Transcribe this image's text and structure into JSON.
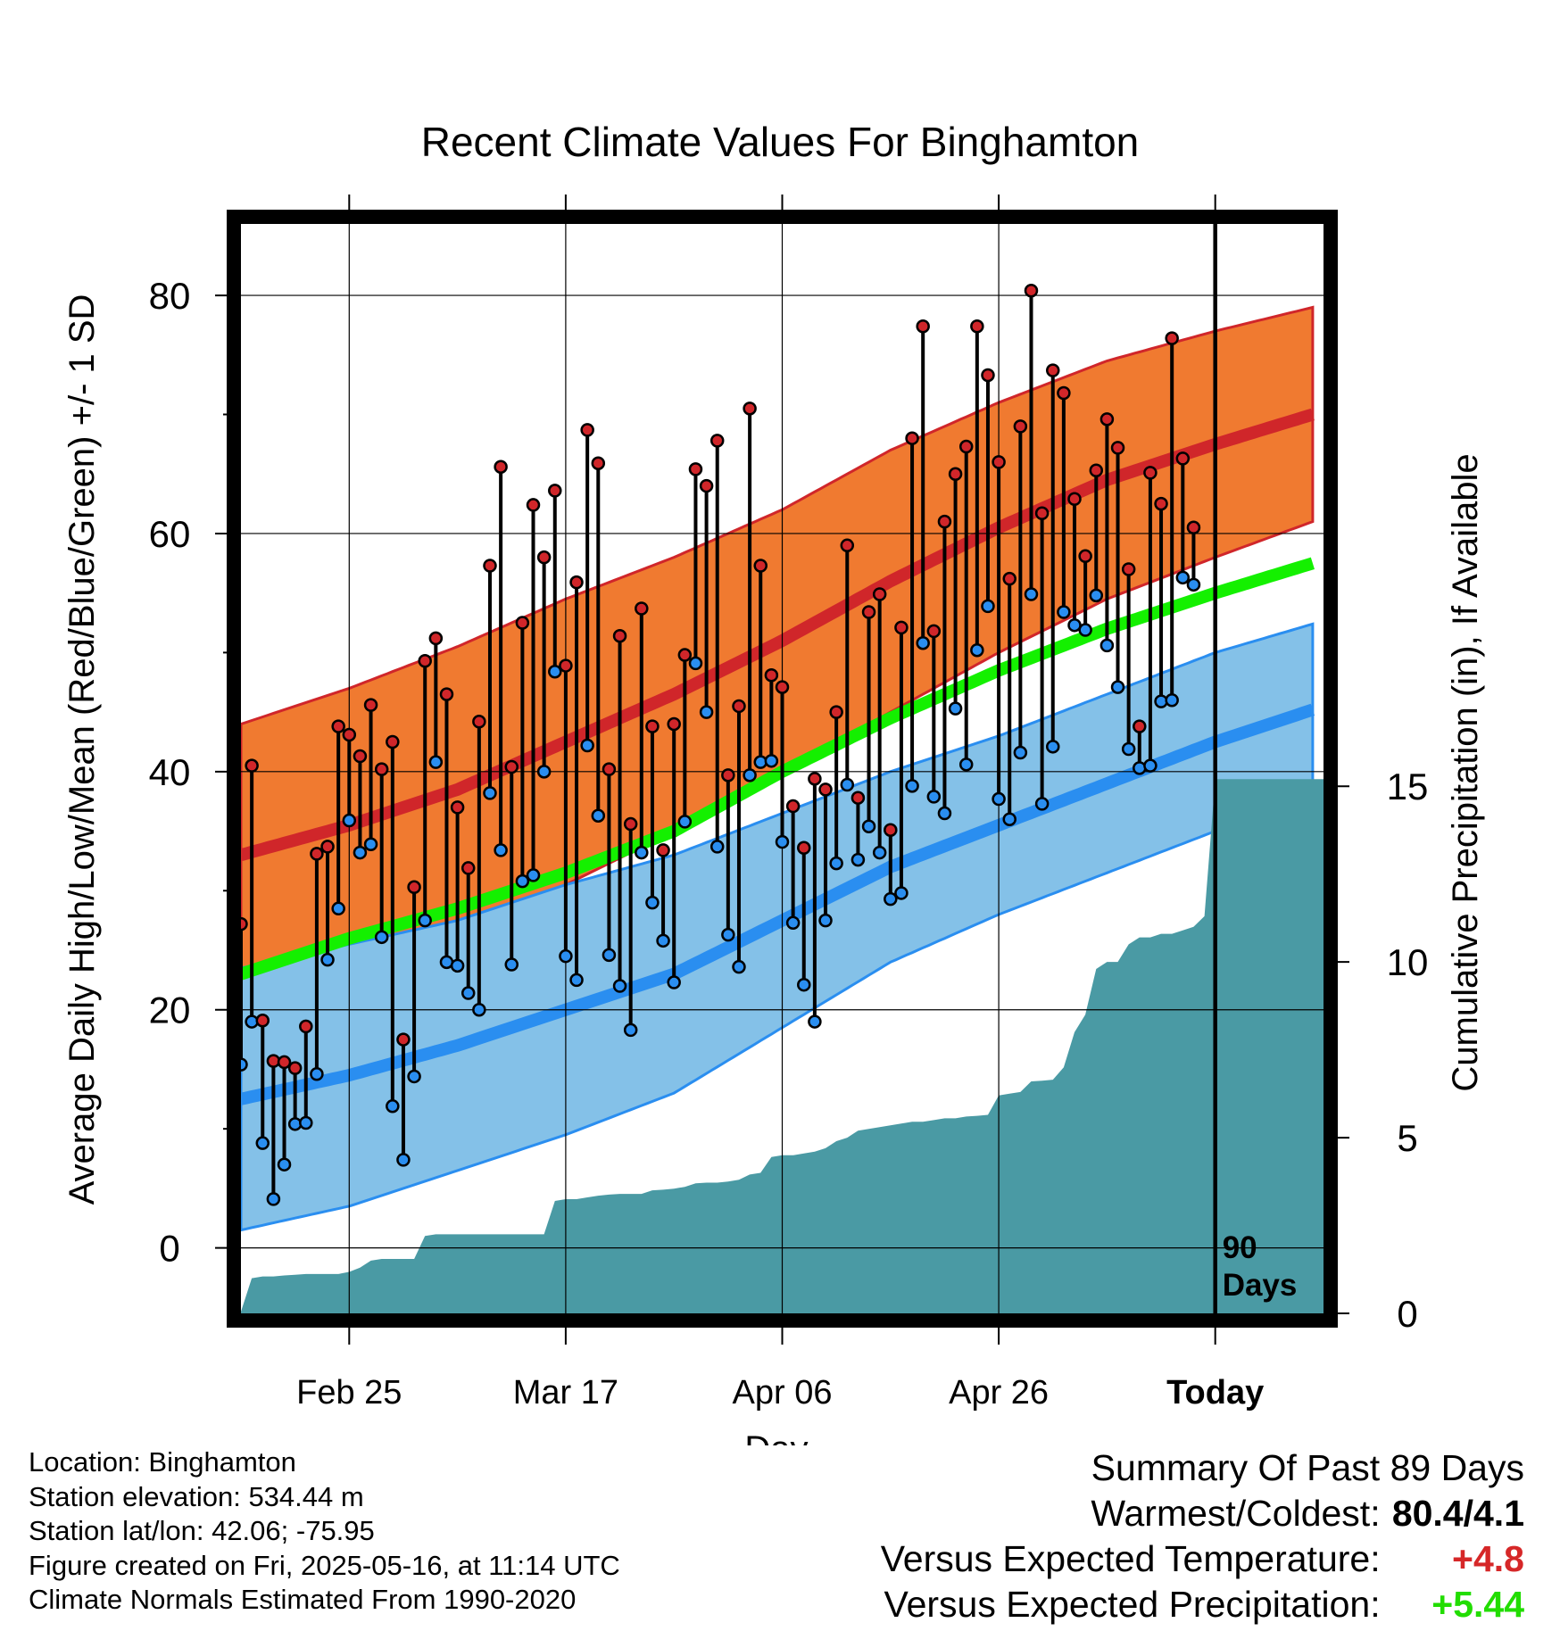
{
  "chart_data": {
    "type": "line",
    "title": "Recent Climate Values For Binghamton",
    "xlabel": "Day",
    "ylabel": "Average Daily High/Low/Mean (Red/Blue/Green) +/- 1 SD",
    "y2label": "Cumulative Precipitation (in), If Available",
    "ylim": [
      -5.5,
      86
    ],
    "y_ticks": [
      "0",
      "20",
      "40",
      "60",
      "80"
    ],
    "y2lim": [
      0,
      31
    ],
    "y2_ticks": [
      "0",
      "5",
      "10",
      "15"
    ],
    "x_ticks": [
      {
        "label": "Feb 25",
        "day": 10
      },
      {
        "label": "Mar 17",
        "day": 30
      },
      {
        "label": "Apr 06",
        "day": 50
      },
      {
        "label": "Apr 26",
        "day": 70
      },
      {
        "label": "Today",
        "day": 90
      }
    ],
    "window_label": "90\nDays",
    "x_range_days": [
      0,
      100
    ],
    "grid": true,
    "colors": {
      "high_band": "#f07a30",
      "high_line": "#d0262a",
      "low_band": "#84c1e8",
      "low_line": "#2a8ef0",
      "mean_line": "#14f000",
      "precip": "#4a9aa4",
      "high_point": "#d0262a",
      "low_point": "#2a8ef0"
    },
    "normals": {
      "days": [
        0,
        10,
        20,
        30,
        40,
        50,
        60,
        70,
        80,
        90,
        99
      ],
      "high_mean": [
        33,
        35.5,
        38.5,
        42.5,
        46.5,
        51,
        56,
        60.5,
        64.5,
        67.5,
        70
      ],
      "high_sd": [
        11,
        11.5,
        12,
        12,
        11.5,
        11,
        11,
        10.5,
        10,
        9.5,
        9
      ],
      "low_mean": [
        12.5,
        14.5,
        17,
        20,
        23,
        27.5,
        32,
        35.5,
        39,
        42.5,
        45.2
      ],
      "low_sd": [
        11,
        11,
        10.5,
        10.5,
        10,
        9,
        8,
        7.5,
        7.5,
        7.5,
        7.2
      ],
      "mean": [
        23,
        26,
        28.5,
        31.5,
        35,
        40,
        44.5,
        48.5,
        52,
        55,
        57.5
      ]
    },
    "daily": {
      "high": [
        27.2,
        40.5,
        19.1,
        15.7,
        15.6,
        15.1,
        18.6,
        33.1,
        33.7,
        43.8,
        43.1,
        41.3,
        45.6,
        40.2,
        42.5,
        17.5,
        30.3,
        49.3,
        51.2,
        46.5,
        37.0,
        31.9,
        44.2,
        57.3,
        65.6,
        40.4,
        52.5,
        62.4,
        58.0,
        63.6,
        48.9,
        55.9,
        68.7,
        65.9,
        40.2,
        51.4,
        35.6,
        53.7,
        43.8,
        33.4,
        44.0,
        49.8,
        65.4,
        64.0,
        67.8,
        39.7,
        45.5,
        70.5,
        57.3,
        48.1,
        47.1,
        37.1,
        33.6,
        39.4,
        38.5,
        45.0,
        59.0,
        37.8,
        53.4,
        54.9,
        35.1,
        52.1,
        68.0,
        77.4,
        51.8,
        61.0,
        65.0,
        67.3,
        77.4,
        73.3,
        66.0,
        56.2,
        69.0,
        80.4,
        61.7,
        73.7,
        71.8,
        62.9,
        58.1,
        65.3,
        69.6,
        67.2,
        57.0,
        43.8,
        65.1,
        62.5,
        76.4,
        66.3,
        60.5
      ],
      "low": [
        15.4,
        19.0,
        8.8,
        4.1,
        7.0,
        10.4,
        10.5,
        14.6,
        24.2,
        28.5,
        35.9,
        33.2,
        33.9,
        26.1,
        11.9,
        7.4,
        14.4,
        27.5,
        40.8,
        24.0,
        23.7,
        21.4,
        20.0,
        38.2,
        33.4,
        23.8,
        30.8,
        31.3,
        40.0,
        48.4,
        24.5,
        22.5,
        42.2,
        36.3,
        24.6,
        22.0,
        18.3,
        33.2,
        29.0,
        25.8,
        22.3,
        35.8,
        49.1,
        45.0,
        33.7,
        26.3,
        23.6,
        39.7,
        40.8,
        40.9,
        34.1,
        27.3,
        22.1,
        19.0,
        27.5,
        32.3,
        38.9,
        32.6,
        35.4,
        33.2,
        29.3,
        29.8,
        38.8,
        50.8,
        37.9,
        36.5,
        45.3,
        40.6,
        50.2,
        53.9,
        37.7,
        36.0,
        41.6,
        54.9,
        37.3,
        42.1,
        53.4,
        52.3,
        51.9,
        54.8,
        50.6,
        47.1,
        41.9,
        40.3,
        40.5,
        45.9,
        46.0,
        56.3,
        55.7
      ]
    },
    "precip": {
      "days": [
        0,
        1,
        2,
        3,
        4,
        5,
        6,
        7,
        8,
        9,
        10,
        11,
        12,
        13,
        14,
        15,
        16,
        17,
        18,
        19,
        20,
        21,
        22,
        23,
        24,
        25,
        26,
        27,
        28,
        29,
        30,
        31,
        32,
        33,
        34,
        35,
        36,
        37,
        38,
        39,
        40,
        41,
        42,
        43,
        44,
        45,
        46,
        47,
        48,
        49,
        50,
        51,
        52,
        53,
        54,
        55,
        56,
        57,
        58,
        59,
        60,
        61,
        62,
        63,
        64,
        65,
        66,
        67,
        68,
        69,
        70,
        71,
        72,
        73,
        74,
        75,
        76,
        77,
        78,
        79,
        80,
        81,
        82,
        83,
        84,
        85,
        86,
        87,
        88,
        89,
        90,
        91,
        92,
        93,
        94,
        95,
        96,
        97,
        98,
        99,
        100
      ],
      "values": [
        0.05,
        1.0,
        1.05,
        1.05,
        1.08,
        1.1,
        1.12,
        1.12,
        1.12,
        1.12,
        1.18,
        1.3,
        1.5,
        1.55,
        1.55,
        1.55,
        1.55,
        2.2,
        2.25,
        2.25,
        2.25,
        2.25,
        2.25,
        2.25,
        2.25,
        2.25,
        2.25,
        2.25,
        2.25,
        3.2,
        3.25,
        3.25,
        3.3,
        3.35,
        3.38,
        3.4,
        3.4,
        3.4,
        3.5,
        3.52,
        3.55,
        3.6,
        3.7,
        3.72,
        3.72,
        3.75,
        3.8,
        3.95,
        4.0,
        4.45,
        4.5,
        4.5,
        4.55,
        4.6,
        4.7,
        4.9,
        5.0,
        5.2,
        5.25,
        5.3,
        5.35,
        5.4,
        5.45,
        5.45,
        5.5,
        5.55,
        5.55,
        5.6,
        5.62,
        5.65,
        6.2,
        6.25,
        6.3,
        6.6,
        6.62,
        6.65,
        7.0,
        8.0,
        8.5,
        9.8,
        10.0,
        10.0,
        10.5,
        10.7,
        10.7,
        10.8,
        10.8,
        10.9,
        11.0,
        11.3,
        15.2,
        15.2,
        15.2,
        15.2,
        15.2,
        15.2,
        15.2,
        15.2,
        15.2,
        15.2,
        15.2
      ]
    }
  },
  "info": {
    "location": "Location: Binghamton",
    "elevation": "Station elevation: 534.44 m",
    "latlon": "Station lat/lon: 42.06; -75.95",
    "created": "Figure created on Fri, 2025-05-16, at 11:14 UTC",
    "normals": "Climate Normals Estimated From 1990-2020"
  },
  "summary": {
    "title": "Summary Of Past 89 Days",
    "warmest_label": "Warmest/Coldest:",
    "warmest_value": "80.4/4.1",
    "temp_label": "Versus Expected Temperature:",
    "temp_value": "+4.8",
    "precip_label": "Versus Expected Precipitation:",
    "precip_value": "+5.44"
  }
}
